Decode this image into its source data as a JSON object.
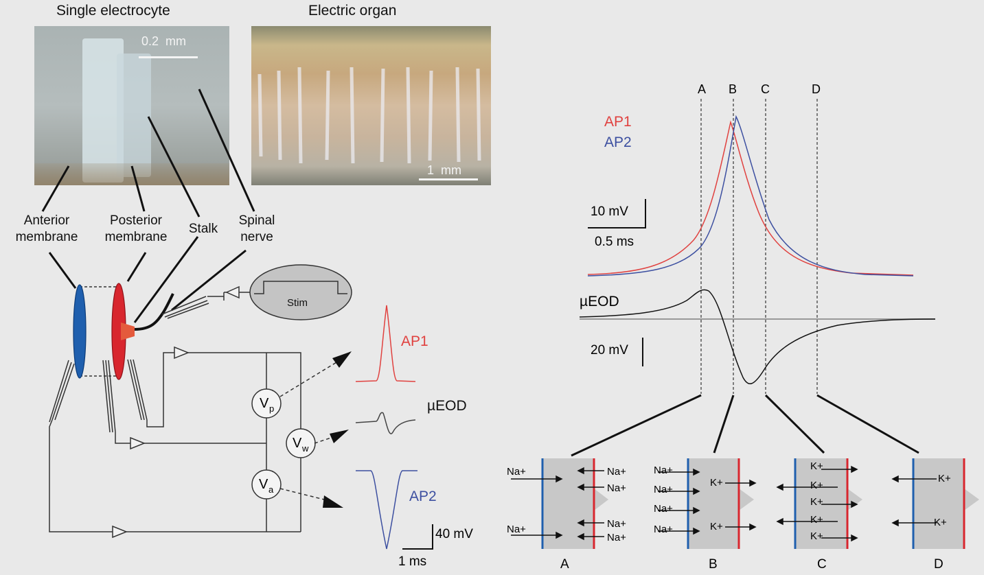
{
  "titles": {
    "single_electrocyte": "Single electrocyte",
    "electric_organ": "Electric organ"
  },
  "scale_bars": {
    "electrocyte": "0.2  mm",
    "organ": "1  mm"
  },
  "anatomy_labels": {
    "anterior": [
      "Anterior",
      "membrane"
    ],
    "posterior": [
      "Posterior",
      "membrane"
    ],
    "stalk": "Stalk",
    "spinal": [
      "Spinal",
      "nerve"
    ]
  },
  "stim_label": "Stim",
  "electrodes": {
    "vp": "V",
    "vp_sub": "p",
    "vw": "V",
    "vw_sub": "w",
    "va": "V",
    "va_sub": "a"
  },
  "trace_labels": {
    "ap1": "AP1",
    "ueod": "µEOD",
    "ap2": "AP2"
  },
  "small_scale": {
    "voltage": "40 mV",
    "time": "1 ms"
  },
  "right_panel": {
    "markers": [
      "A",
      "B",
      "C",
      "D"
    ],
    "legend": {
      "ap1": "AP1",
      "ap2": "AP2"
    },
    "scale_top": {
      "voltage": "10 mV",
      "time": "0.5 ms"
    },
    "ueod_label": "µEOD",
    "scale_bottom": "20 mV"
  },
  "ion_panels": {
    "A": {
      "label": "A",
      "na_left": [
        "Na+",
        "Na+"
      ],
      "na_right": [
        "Na+",
        "Na+",
        "Na+",
        "Na+"
      ]
    },
    "B": {
      "label": "B",
      "na_left": [
        "Na+",
        "Na+",
        "Na+",
        "Na+"
      ],
      "k_right": [
        "K+",
        "K+"
      ]
    },
    "C": {
      "label": "C",
      "k": [
        "K+",
        "K+",
        "K+",
        "K+",
        "K+"
      ]
    },
    "D": {
      "label": "D",
      "k": [
        "K+",
        "K+"
      ]
    }
  },
  "colors": {
    "ap1": "#e0413f",
    "ap2": "#3c4fa0",
    "anterior": "#1f5fae",
    "posterior": "#d8262e",
    "cell": "#c8c8c8"
  }
}
